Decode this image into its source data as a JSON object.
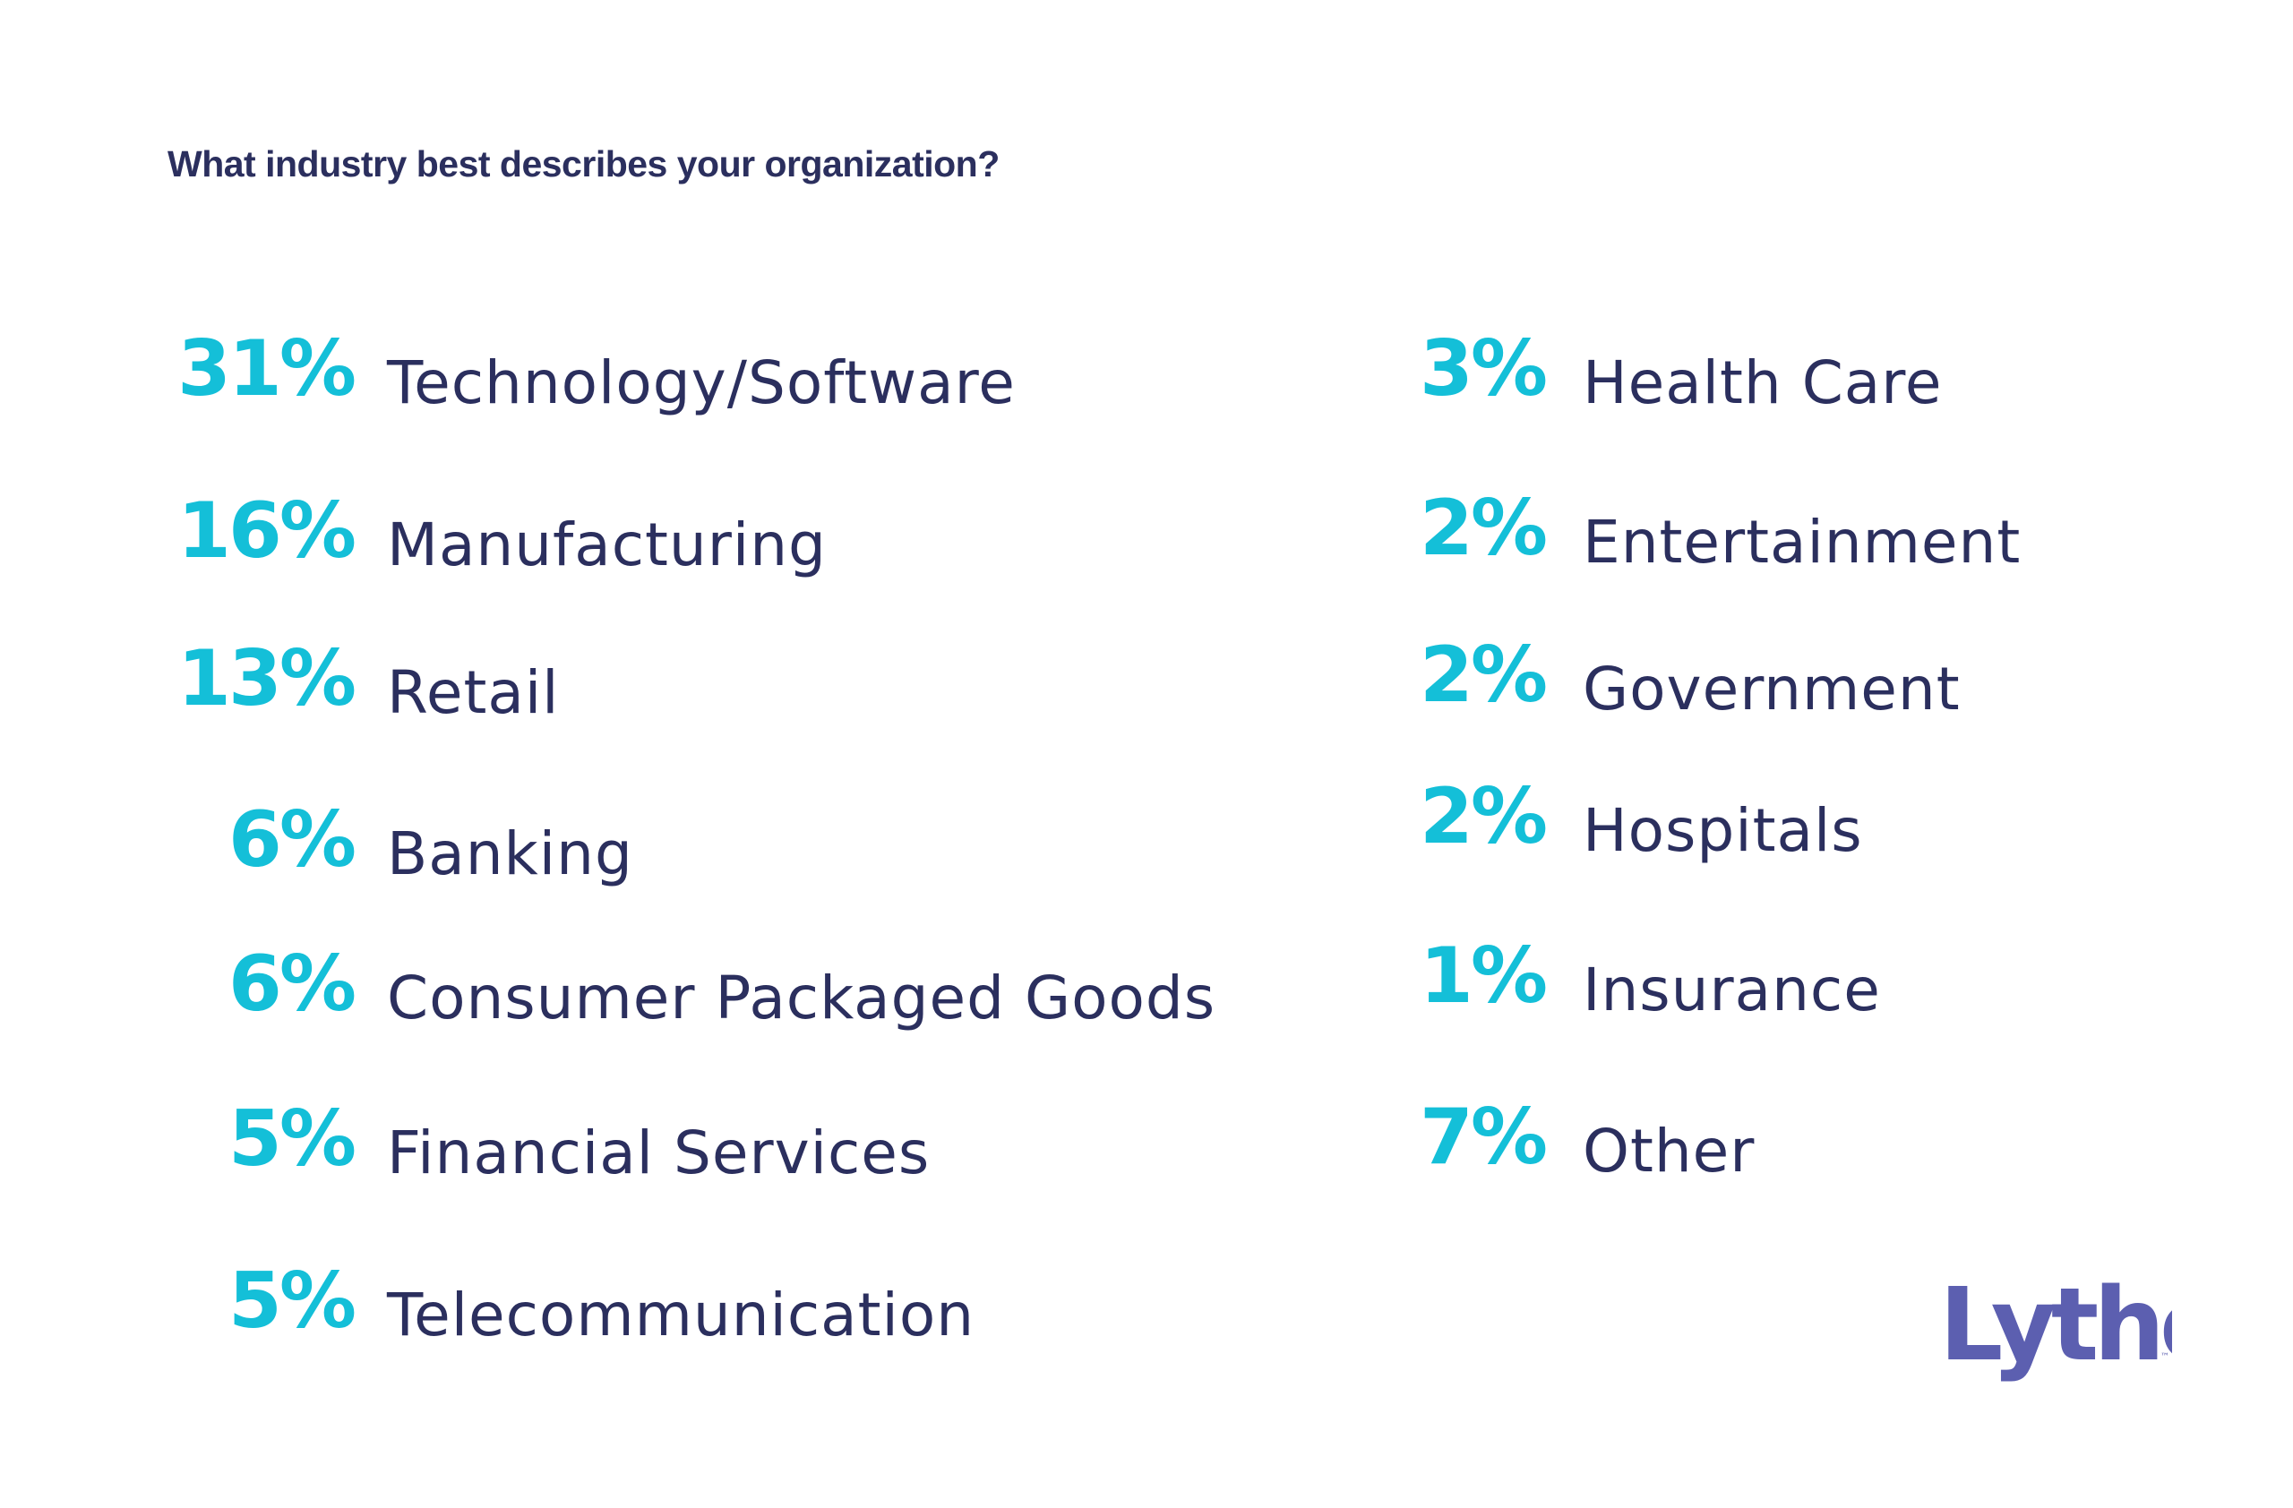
{
  "title": "What industry best describes your organization?",
  "logo": {
    "text": "Lytho",
    "trademark": "™",
    "color": "#5c5fb0"
  },
  "colors": {
    "percent": "#14bfd8",
    "label": "#2b2f5e"
  },
  "chart_data": {
    "type": "table",
    "title": "What industry best describes your organization?",
    "columns": [
      [
        {
          "label": "Technology/Software",
          "value": 31,
          "display": "31%"
        },
        {
          "label": "Manufacturing",
          "value": 16,
          "display": "16%"
        },
        {
          "label": "Retail",
          "value": 13,
          "display": "13%"
        },
        {
          "label": "Banking",
          "value": 6,
          "display": "6%"
        },
        {
          "label": "Consumer Packaged Goods",
          "value": 6,
          "display": "6%"
        },
        {
          "label": "Financial Services",
          "value": 5,
          "display": "5%"
        },
        {
          "label": "Telecommunication",
          "value": 5,
          "display": "5%"
        }
      ],
      [
        {
          "label": "Health Care",
          "value": 3,
          "display": "3%"
        },
        {
          "label": "Entertainment",
          "value": 2,
          "display": "2%"
        },
        {
          "label": "Government",
          "value": 2,
          "display": "2%"
        },
        {
          "label": "Hospitals",
          "value": 2,
          "display": "2%"
        },
        {
          "label": "Insurance",
          "value": 1,
          "display": "1%"
        },
        {
          "label": "Other",
          "value": 7,
          "display": "7%"
        }
      ]
    ]
  }
}
